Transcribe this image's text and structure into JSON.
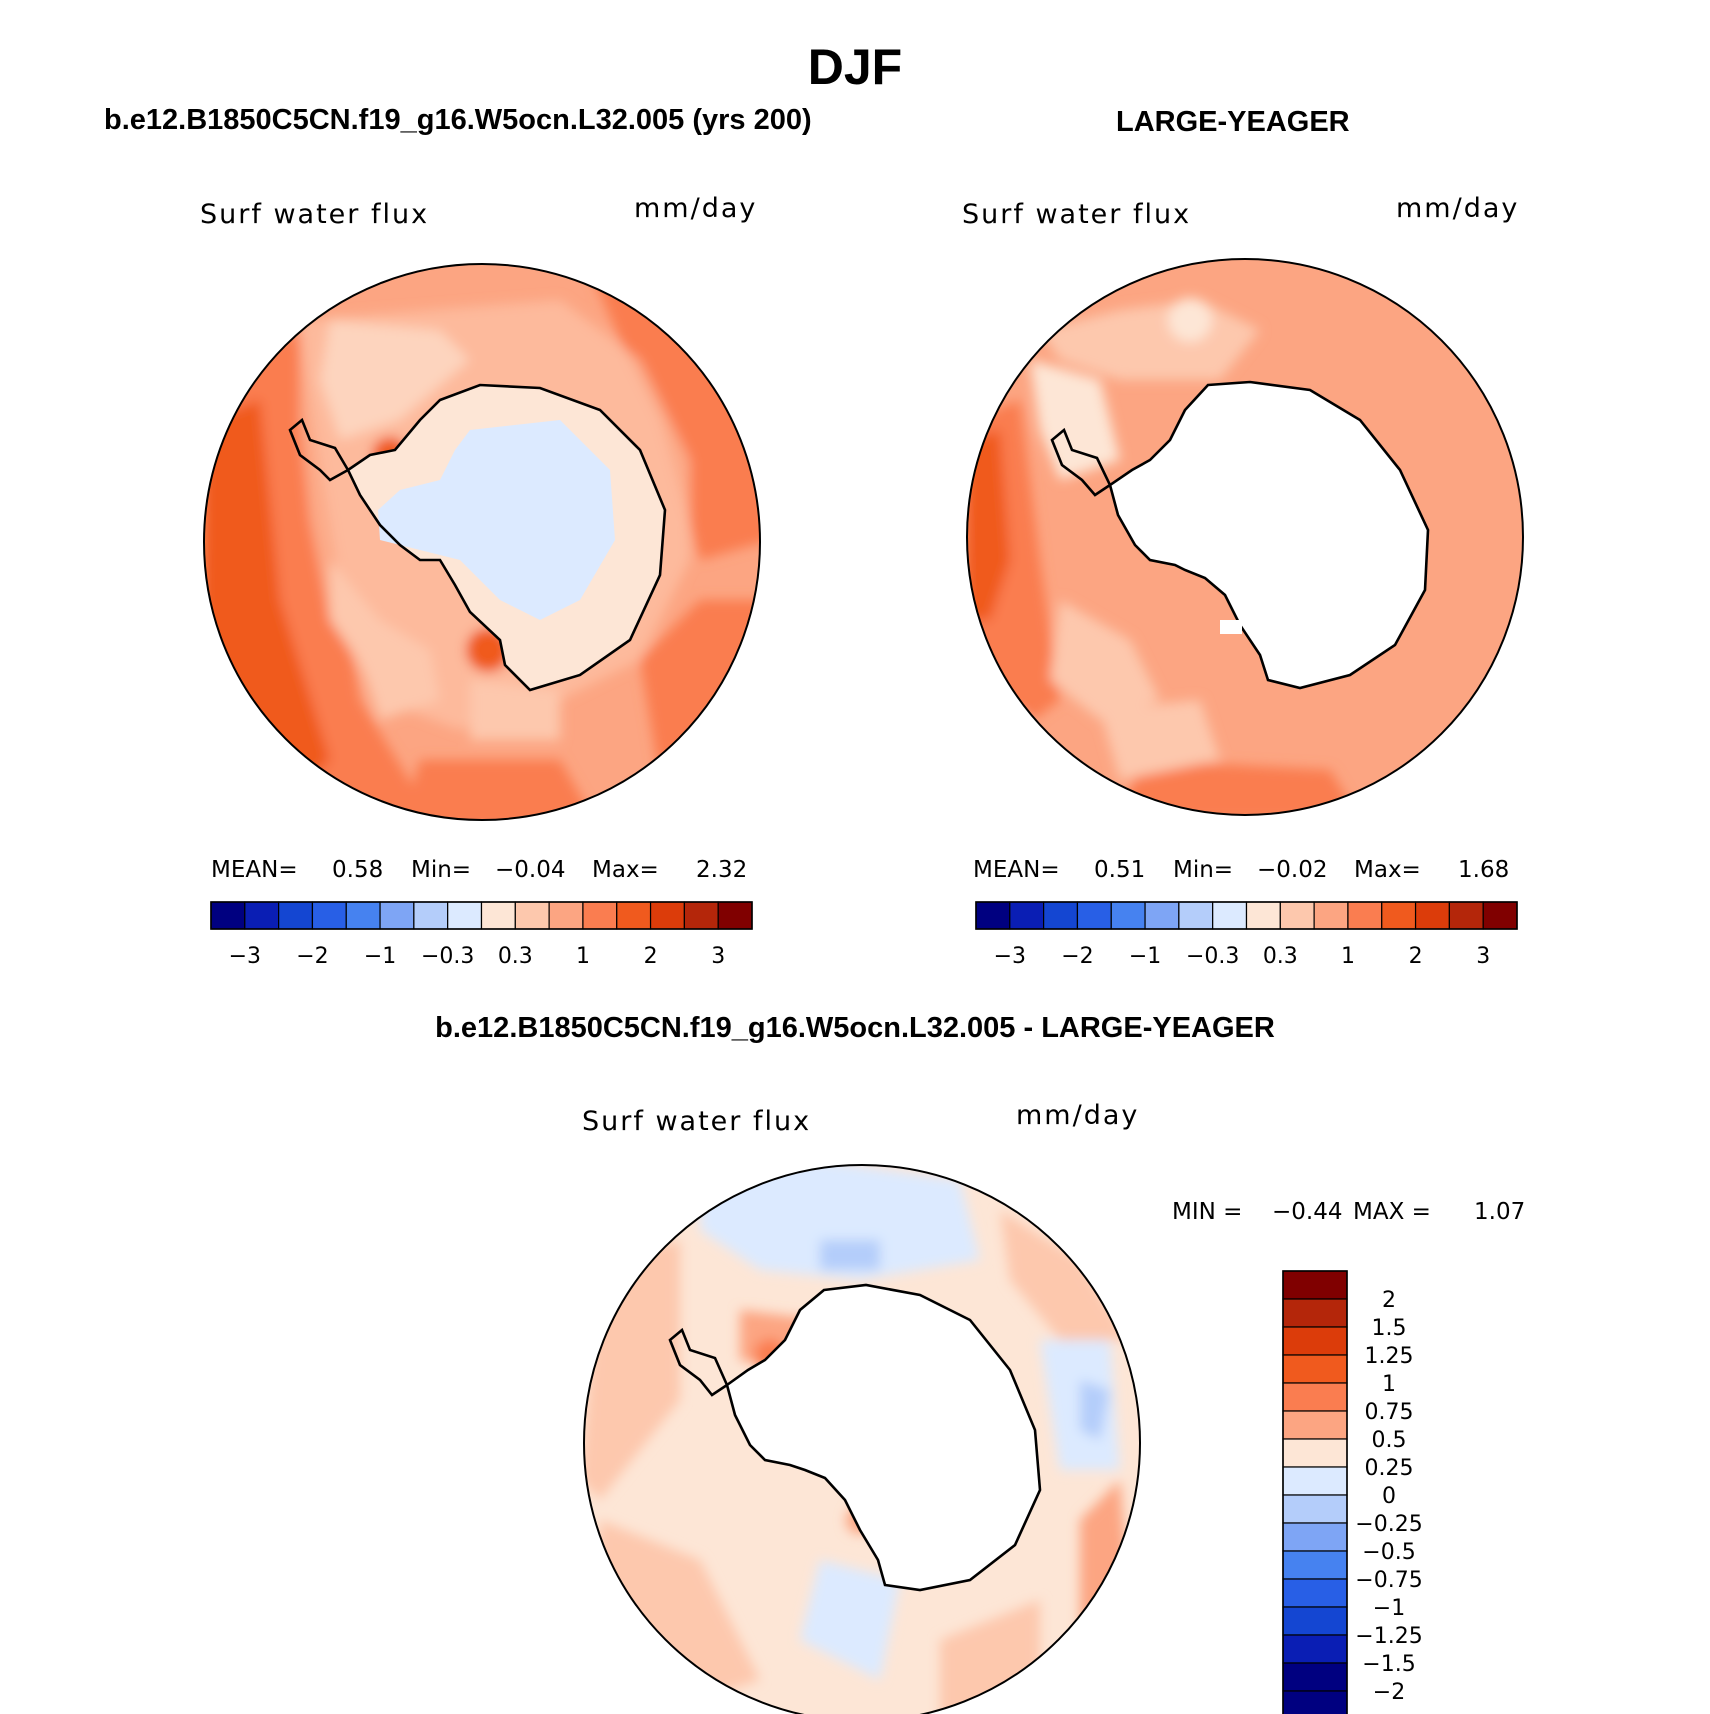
{
  "figure": {
    "title": "DJF",
    "left_case": "b.e12.B1850C5CN.f19_g16.W5ocn.L32.005 (yrs 200)",
    "right_case": "LARGE-YEAGER",
    "diff_case": "b.e12.B1850C5CN.f19_g16.W5ocn.L32.005 - LARGE-YEAGER"
  },
  "chart_data": [
    {
      "type": "heatmap",
      "projection": "south polar stereographic",
      "variable": "Surf water flux",
      "units": "mm/day",
      "stats": {
        "mean_label": "MEAN=",
        "mean": "0.58",
        "min_label": "Min=",
        "min": "−0.04",
        "max_label": "Max=",
        "max": "2.32"
      },
      "levels": [
        "−3",
        "−2",
        "−1",
        "−0.3",
        "0.3",
        "1",
        "2",
        "3"
      ]
    },
    {
      "type": "heatmap",
      "projection": "south polar stereographic",
      "variable": "Surf water flux",
      "units": "mm/day",
      "stats": {
        "mean_label": "MEAN=",
        "mean": "0.51",
        "min_label": "Min=",
        "min": "−0.02",
        "max_label": "Max=",
        "max": "1.68"
      },
      "levels": [
        "−3",
        "−2",
        "−1",
        "−0.3",
        "0.3",
        "1",
        "2",
        "3"
      ]
    },
    {
      "type": "heatmap",
      "projection": "south polar stereographic",
      "variable": "Surf water flux",
      "units": "mm/day",
      "stats": {
        "min_label": "MIN =",
        "min": "−0.44",
        "max_label": "MAX =",
        "max": "1.07"
      },
      "levels": [
        "2",
        "1.5",
        "1.25",
        "1",
        "0.75",
        "0.5",
        "0.25",
        "0",
        "−0.25",
        "−0.5",
        "−0.75",
        "−1",
        "−1.25",
        "−1.5",
        "−2"
      ]
    }
  ],
  "colors": {
    "top_bar": [
      "#000080",
      "#0a1eb4",
      "#1446d2",
      "#285fe6",
      "#4682f0",
      "#7ea5f5",
      "#b4cdfa",
      "#dceaff",
      "#fde6d6",
      "#fdc8ad",
      "#fca582",
      "#fa7d50",
      "#f05a1e",
      "#dc3c0a",
      "#b4260a",
      "#800000"
    ],
    "diff_bar": [
      "#800000",
      "#b4260a",
      "#dc3c0a",
      "#f05a1e",
      "#fa7d50",
      "#fca582",
      "#fde6d6",
      "#dceaff",
      "#b4cdfa",
      "#7ea5f5",
      "#4682f0",
      "#285fe6",
      "#1446d2",
      "#0a1eb4",
      "#000080"
    ],
    "background_field": "#fbb896",
    "land": "#ffffff",
    "coast": "#000000"
  }
}
